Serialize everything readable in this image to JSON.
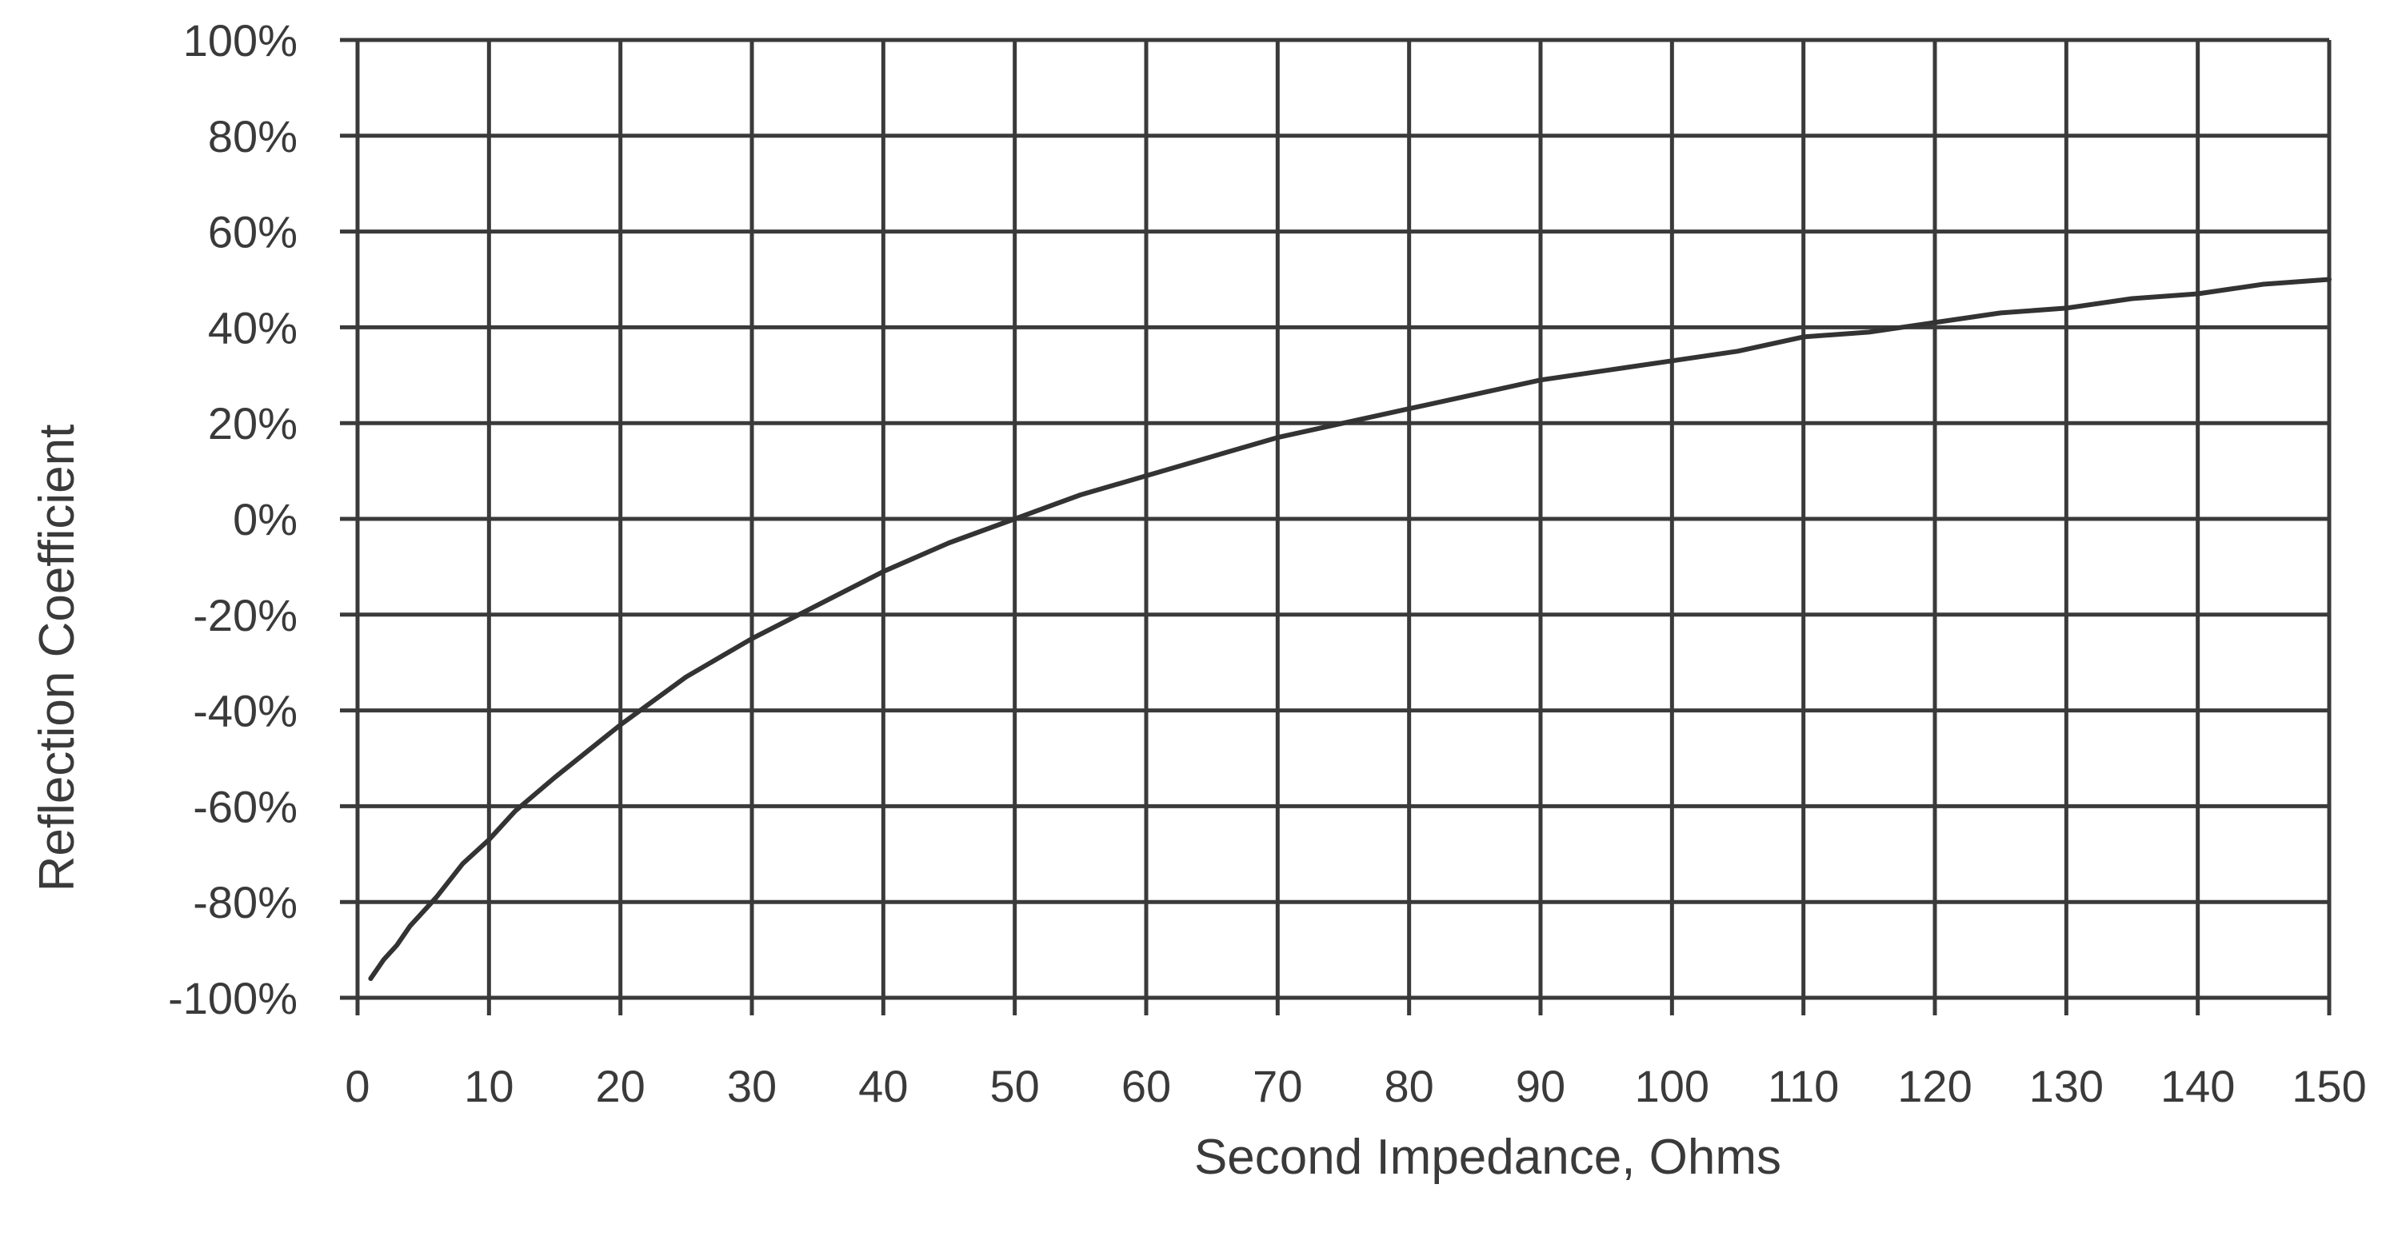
{
  "chart_data": {
    "type": "line",
    "title": "",
    "xlabel": "Second Impedance, Ohms",
    "ylabel": "Reflection Coefficient",
    "xlim": [
      0,
      150
    ],
    "ylim": [
      -100,
      100
    ],
    "grid": true,
    "legend": "none",
    "x_ticks": [
      "0",
      "10",
      "20",
      "30",
      "40",
      "50",
      "60",
      "70",
      "80",
      "90",
      "100",
      "110",
      "120",
      "130",
      "140",
      "150"
    ],
    "y_ticks": [
      "100%",
      "80%",
      "60%",
      "40%",
      "20%",
      "0%",
      "-20%",
      "-40%",
      "-60%",
      "-80%",
      "-100%"
    ],
    "series": [
      {
        "x": [
          1,
          2,
          3,
          4,
          5,
          6,
          8,
          10,
          12,
          15,
          20,
          25,
          30,
          35,
          40,
          45,
          50,
          55,
          60,
          65,
          70,
          75,
          80,
          85,
          90,
          95,
          100,
          105,
          110,
          115,
          120,
          125,
          130,
          135,
          140,
          145,
          150
        ],
        "values": [
          -96,
          -92,
          -89,
          -85,
          -82,
          -79,
          -72,
          -67,
          -61,
          -54,
          -43,
          -33,
          -25,
          -18,
          -11,
          -5,
          0,
          5,
          9,
          13,
          17,
          20,
          23,
          26,
          29,
          31,
          33,
          35,
          38,
          39,
          41,
          43,
          44,
          46,
          47,
          49,
          50
        ],
        "color": "#333333"
      }
    ]
  }
}
